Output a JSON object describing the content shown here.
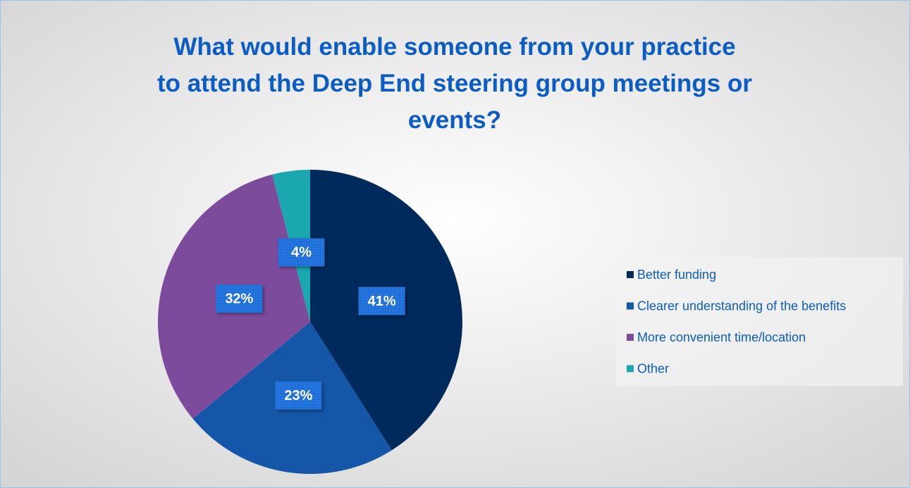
{
  "chart_data": {
    "type": "pie",
    "title": [
      "What would enable someone from your practice",
      "to attend the Deep End steering group meetings or",
      "events?"
    ],
    "categories": [
      "Better funding",
      "Clearer understanding of the benefits",
      "More convenient time/location",
      "Other"
    ],
    "values": [
      41,
      23,
      32,
      4
    ],
    "value_labels": [
      "41%",
      "23%",
      "32%",
      "4%"
    ],
    "colors": [
      "#002a5c",
      "#1457a8",
      "#7d4b9c",
      "#1aa7b0"
    ],
    "legend": "right"
  }
}
